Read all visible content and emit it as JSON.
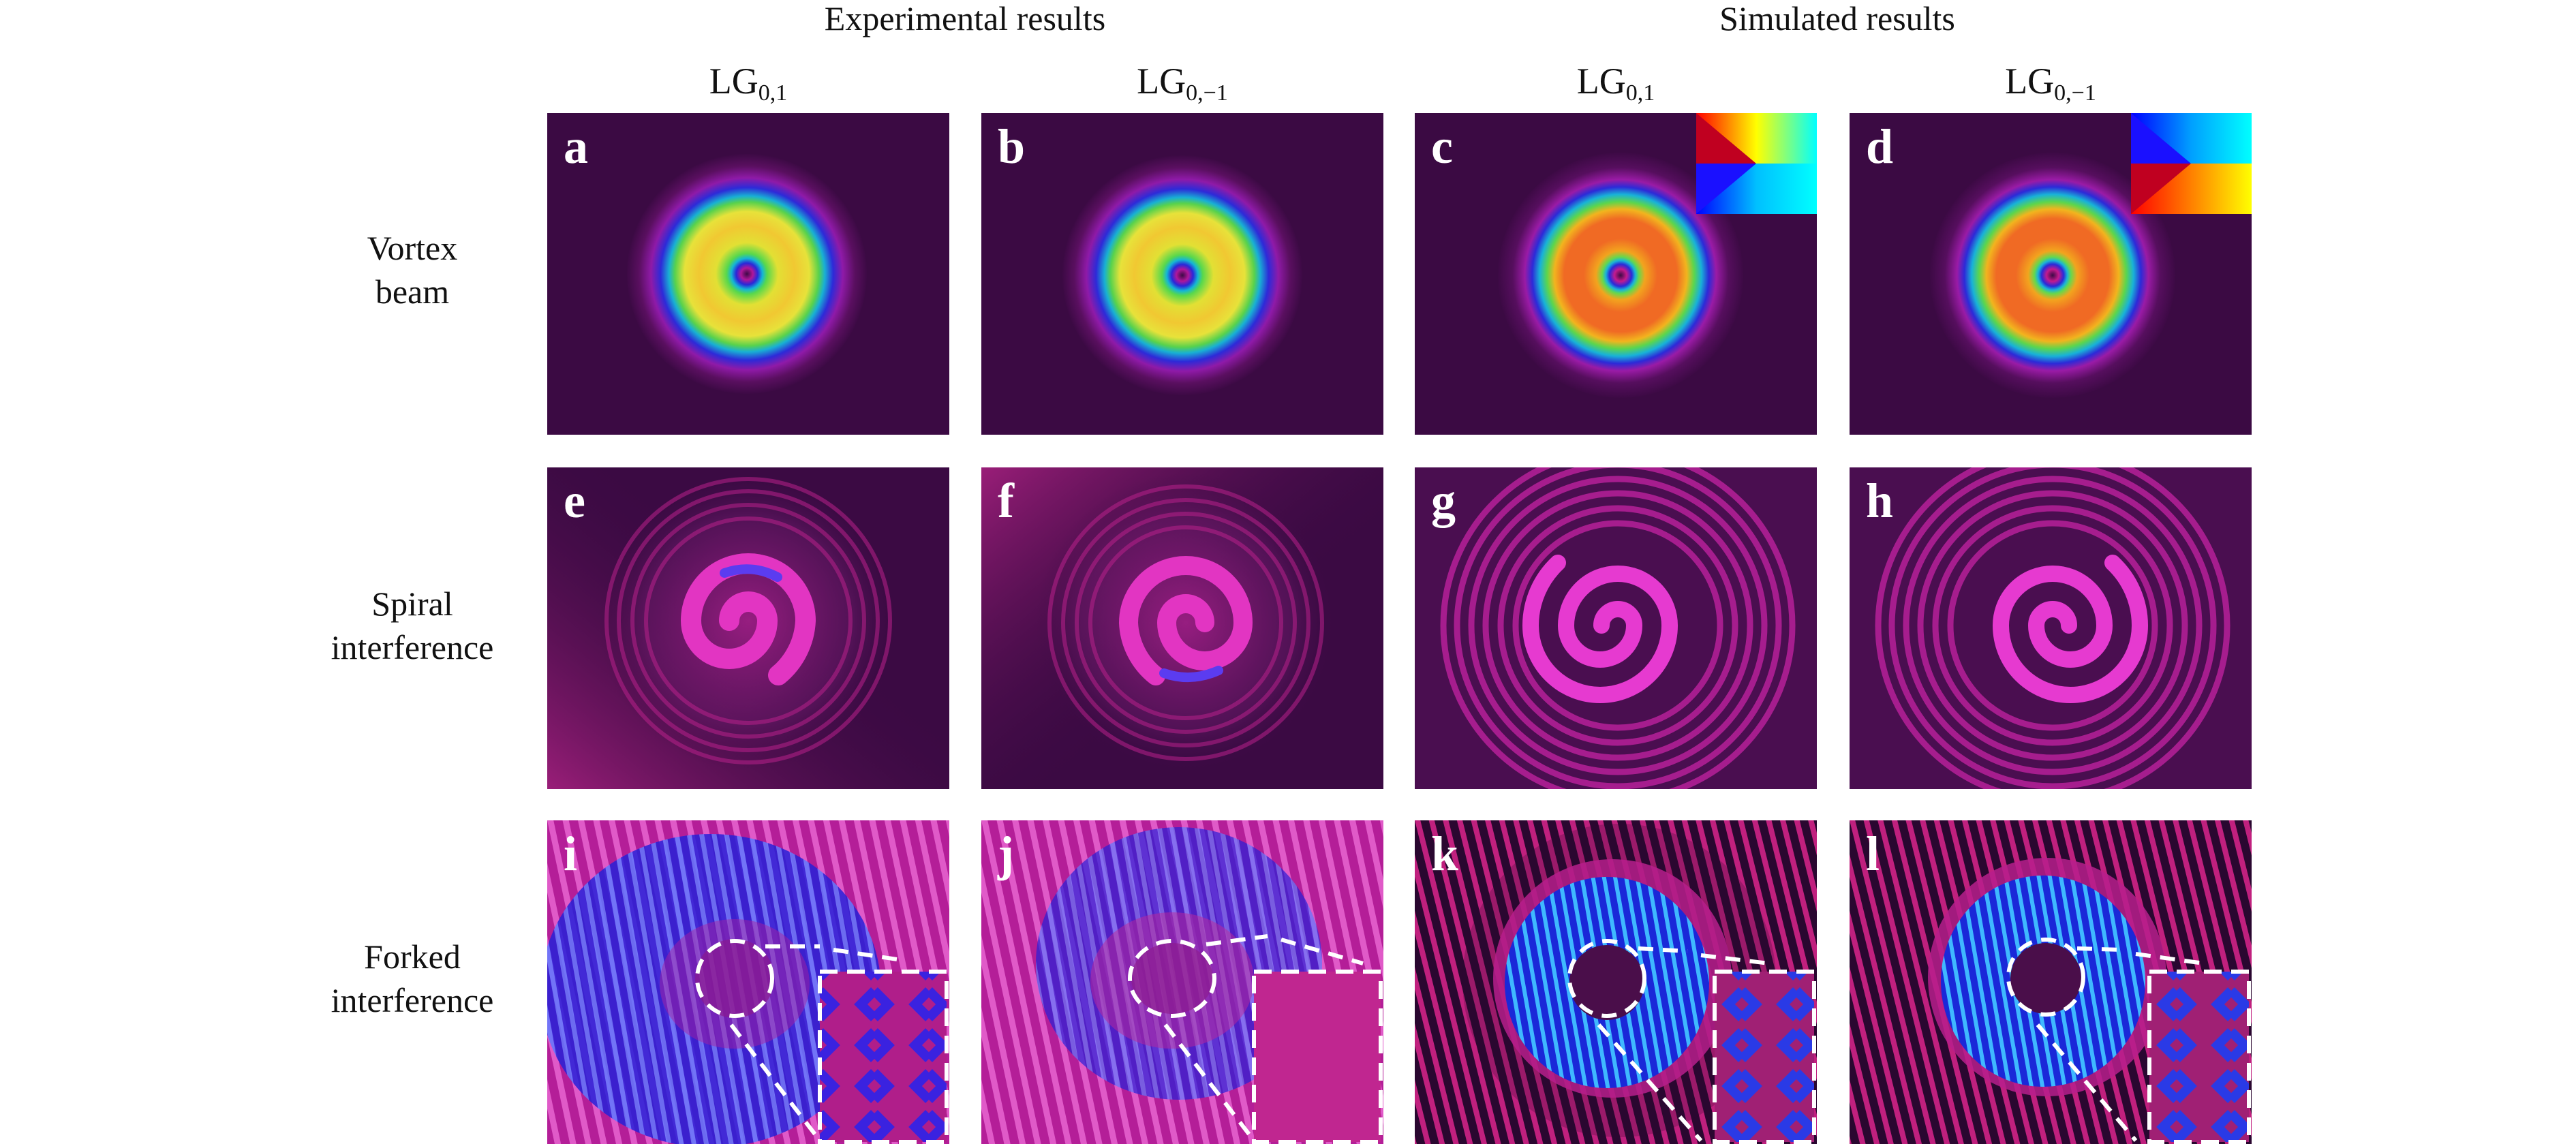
{
  "header": {
    "experimental": "Experimental results",
    "simulated": "Simulated results"
  },
  "columns": [
    {
      "base": "LG",
      "sub": "0,1"
    },
    {
      "base": "LG",
      "sub": "0,−1"
    },
    {
      "base": "LG",
      "sub": "0,1"
    },
    {
      "base": "LG",
      "sub": "0,−1"
    }
  ],
  "rows": [
    {
      "line1": "Vortex",
      "line2": "beam"
    },
    {
      "line1": "Spiral",
      "line2": "interference"
    },
    {
      "line1": "Forked",
      "line2": "interference"
    }
  ],
  "panels": {
    "row0": [
      "a",
      "b",
      "c",
      "d"
    ],
    "row1": [
      "e",
      "f",
      "g",
      "h"
    ],
    "row2": [
      "i",
      "j",
      "k",
      "l"
    ]
  },
  "colors": {
    "background": "#3a0a3f",
    "ring_magenta": "#d21f9c",
    "ring_blue": "#2b20e0",
    "inset_border": "#ffffff"
  }
}
